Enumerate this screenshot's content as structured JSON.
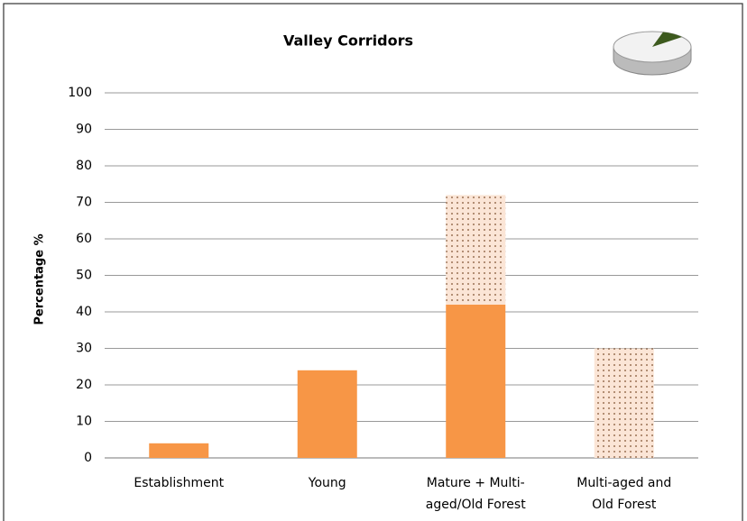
{
  "chart_data": {
    "type": "stacked_bar",
    "title": "Valley Corridors",
    "ylabel": "Percentage %",
    "categories": [
      [
        "Establishment"
      ],
      [
        "Young"
      ],
      [
        "Mature + Multi-",
        "aged/Old Forest"
      ],
      [
        "Multi-aged and",
        "Old Forest"
      ]
    ],
    "series": [
      {
        "color": "#f79646",
        "pattern": "solid",
        "values": [
          4,
          24,
          42,
          0
        ]
      },
      {
        "color": "#fbe5d6",
        "pattern": "dotted",
        "values": [
          0,
          0,
          30,
          30
        ]
      }
    ],
    "ylim": [
      0,
      100
    ],
    "yticks": [
      0,
      10,
      20,
      30,
      40,
      50,
      60,
      70,
      80,
      90,
      100
    ],
    "grid": true
  }
}
